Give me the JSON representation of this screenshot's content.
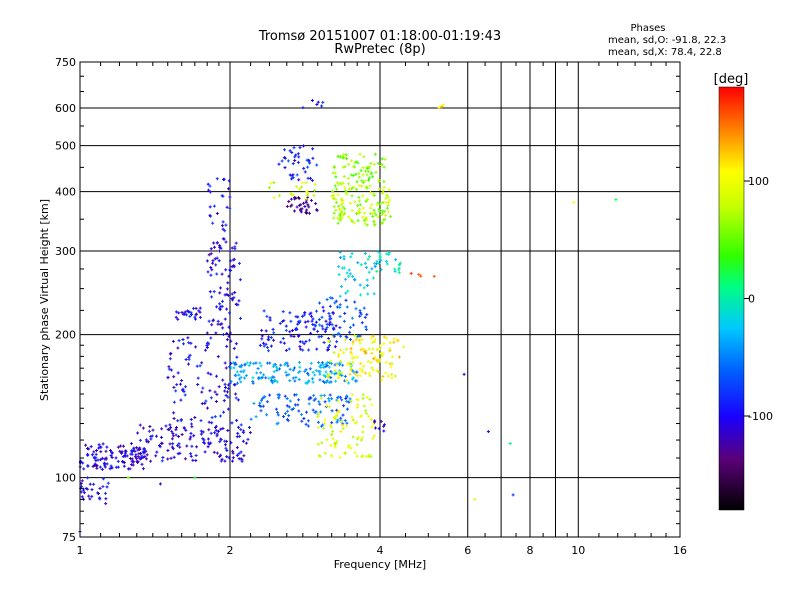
{
  "header": {
    "title": "Tromsø 20151007 01:18:00-01:19:43",
    "subtitle": "RwPretec (8p)",
    "phases_title": "Phases",
    "phases_o": "mean, sd,O: -91.8, 22.3",
    "phases_x": "mean, sd,X:  78.4, 22.8"
  },
  "chart_data": {
    "type": "scatter",
    "xlabel": "Frequency [MHz]",
    "ylabel": "Stationary phase Virtual Height [km]",
    "x_scale": "log",
    "y_scale": "log",
    "xlim": [
      1,
      16
    ],
    "ylim": [
      75,
      750
    ],
    "x_ticks": [
      1,
      2,
      4,
      6,
      8,
      10,
      16
    ],
    "x_tick_labels": [
      "1",
      "2",
      "4",
      "6",
      "8",
      "10",
      "16"
    ],
    "y_ticks": [
      75,
      100,
      200,
      300,
      400,
      500,
      600,
      750
    ],
    "y_tick_labels": [
      "75",
      "100",
      "200",
      "300",
      "400",
      "500",
      "600",
      "750"
    ],
    "grid": true,
    "colorbar": {
      "label": "[deg]",
      "range": [
        -180,
        180
      ],
      "ticks": [
        100,
        0,
        -100
      ],
      "tick_labels": [
        "100",
        "0",
        "-100"
      ]
    },
    "clusters": [
      {
        "x": [
          1.0,
          1.35
        ],
        "y": [
          104,
          118
        ],
        "phase": -108,
        "n": 120
      },
      {
        "x": [
          1.3,
          2.2
        ],
        "y": [
          108,
          130
        ],
        "phase": -105,
        "n": 150
      },
      {
        "x": [
          1.0,
          1.15
        ],
        "y": [
          88,
          100
        ],
        "phase": -100,
        "n": 30
      },
      {
        "x": [
          1.55,
          1.75
        ],
        "y": [
          215,
          228
        ],
        "phase": -100,
        "n": 25
      },
      {
        "x": [
          1.5,
          2.1
        ],
        "y": [
          130,
          200
        ],
        "phase": -98,
        "n": 110
      },
      {
        "x": [
          1.8,
          2.1
        ],
        "y": [
          200,
          320
        ],
        "phase": -102,
        "n": 90
      },
      {
        "x": [
          1.8,
          2.0
        ],
        "y": [
          330,
          430
        ],
        "phase": -95,
        "n": 25
      },
      {
        "x": [
          2.3,
          3.3
        ],
        "y": [
          185,
          225
        ],
        "phase": -90,
        "n": 110
      },
      {
        "x": [
          2.0,
          3.6
        ],
        "y": [
          158,
          175
        ],
        "phase": -40,
        "n": 160
      },
      {
        "x": [
          2.2,
          3.5
        ],
        "y": [
          128,
          150
        ],
        "phase": -60,
        "n": 100
      },
      {
        "x": [
          2.6,
          3.0
        ],
        "y": [
          360,
          390
        ],
        "phase": -130,
        "n": 35
      },
      {
        "x": [
          2.5,
          3.0
        ],
        "y": [
          420,
          500
        ],
        "phase": -90,
        "n": 40
      },
      {
        "x": [
          2.4,
          3.0
        ],
        "y": [
          385,
          420
        ],
        "phase": 85,
        "n": 20
      },
      {
        "x": [
          3.2,
          4.2
        ],
        "y": [
          340,
          420
        ],
        "phase": 70,
        "n": 140
      },
      {
        "x": [
          3.2,
          4.1
        ],
        "y": [
          420,
          480
        ],
        "phase": 60,
        "n": 60
      },
      {
        "x": [
          3.1,
          4.3
        ],
        "y": [
          160,
          200
        ],
        "phase": 100,
        "n": 80
      },
      {
        "x": [
          3.0,
          3.9
        ],
        "y": [
          110,
          150
        ],
        "phase": 90,
        "n": 90
      },
      {
        "x": [
          3.3,
          4.0
        ],
        "y": [
          240,
          300
        ],
        "phase": -20,
        "n": 45
      },
      {
        "x": [
          3.5,
          4.5
        ],
        "y": [
          175,
          200
        ],
        "phase": 115,
        "n": 35
      },
      {
        "x": [
          3.0,
          3.8
        ],
        "y": [
          195,
          240
        ],
        "phase": -70,
        "n": 50
      },
      {
        "x": [
          3.9,
          4.4
        ],
        "y": [
          270,
          300
        ],
        "phase": -10,
        "n": 20
      },
      {
        "x": [
          2.6,
          3.2
        ],
        "y": [
          600,
          625
        ],
        "phase": -95,
        "n": 6
      },
      {
        "x": [
          5.1,
          5.4
        ],
        "y": [
          600,
          630
        ],
        "phase": 120,
        "n": 4
      },
      {
        "x": [
          3.9,
          4.1
        ],
        "y": [
          125,
          132
        ],
        "phase": -110,
        "n": 8
      },
      {
        "x": [
          4.6,
          5.2
        ],
        "y": [
          265,
          275
        ],
        "phase": 140,
        "n": 4
      }
    ],
    "isolated_points": [
      {
        "x": 9.8,
        "y": 380,
        "phase": 110
      },
      {
        "x": 11.9,
        "y": 385,
        "phase": 20
      },
      {
        "x": 7.3,
        "y": 118,
        "phase": 10
      },
      {
        "x": 7.4,
        "y": 92,
        "phase": -80
      },
      {
        "x": 6.6,
        "y": 125,
        "phase": -110
      },
      {
        "x": 5.9,
        "y": 165,
        "phase": -110
      },
      {
        "x": 6.2,
        "y": 90,
        "phase": 90
      },
      {
        "x": 1.45,
        "y": 97,
        "phase": -110
      },
      {
        "x": 1.25,
        "y": 100,
        "phase": 60
      },
      {
        "x": 1.7,
        "y": 100,
        "phase": 30
      },
      {
        "x": 1.0,
        "y": 77,
        "phase": -100
      }
    ]
  }
}
